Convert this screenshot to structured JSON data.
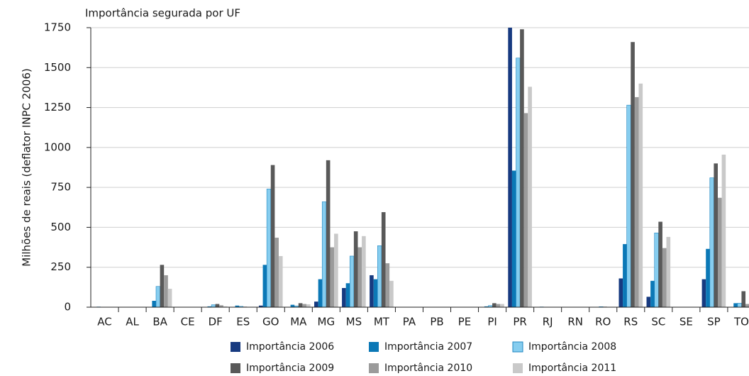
{
  "chart_data": {
    "type": "bar",
    "title": "Importância segurada por UF",
    "y_label": "Milhões de reais (deflator  INPC 2006)",
    "categories": [
      "AC",
      "AL",
      "BA",
      "CE",
      "DF",
      "ES",
      "GO",
      "MA",
      "MG",
      "MS",
      "MT",
      "PA",
      "PB",
      "PE",
      "PI",
      "PR",
      "RJ",
      "RN",
      "RO",
      "RS",
      "SC",
      "SE",
      "SP",
      "TO"
    ],
    "series": [
      {
        "name": "Importância 2006",
        "color": "#173a80",
        "values": [
          0,
          0,
          0,
          0,
          2,
          0,
          10,
          0,
          35,
          120,
          200,
          0,
          0,
          0,
          0,
          1750,
          0,
          0,
          0,
          180,
          65,
          0,
          175,
          0
        ]
      },
      {
        "name": "Importância 2007",
        "color": "#0b78b6",
        "values": [
          3,
          0,
          40,
          0,
          5,
          10,
          265,
          15,
          175,
          150,
          175,
          0,
          0,
          2,
          5,
          855,
          3,
          0,
          2,
          395,
          165,
          0,
          365,
          25
        ]
      },
      {
        "name": "Importância 2008",
        "color": "#86cdef",
        "values": [
          0,
          0,
          130,
          0,
          15,
          5,
          740,
          8,
          660,
          320,
          385,
          0,
          0,
          0,
          10,
          1560,
          0,
          0,
          3,
          1265,
          465,
          0,
          810,
          25
        ]
      },
      {
        "name": "Importância 2009",
        "color": "#595959",
        "values": [
          0,
          0,
          265,
          0,
          20,
          3,
          890,
          25,
          920,
          475,
          595,
          0,
          0,
          0,
          25,
          1740,
          0,
          0,
          3,
          1660,
          535,
          2,
          900,
          100
        ]
      },
      {
        "name": "Importância 2010",
        "color": "#9b9b9b",
        "values": [
          0,
          0,
          200,
          0,
          12,
          2,
          435,
          20,
          375,
          375,
          275,
          0,
          0,
          0,
          20,
          1215,
          0,
          0,
          2,
          1315,
          370,
          2,
          685,
          20
        ]
      },
      {
        "name": "Importância 2011",
        "color": "#c9c9c9",
        "values": [
          0,
          0,
          115,
          0,
          5,
          2,
          320,
          18,
          460,
          445,
          165,
          0,
          0,
          0,
          20,
          1380,
          0,
          0,
          2,
          1400,
          440,
          0,
          955,
          0
        ]
      }
    ],
    "ylim": [
      0,
      1750
    ],
    "yticks": [
      0,
      250,
      500,
      750,
      1000,
      1250,
      1500,
      1750
    ],
    "grid": true
  }
}
